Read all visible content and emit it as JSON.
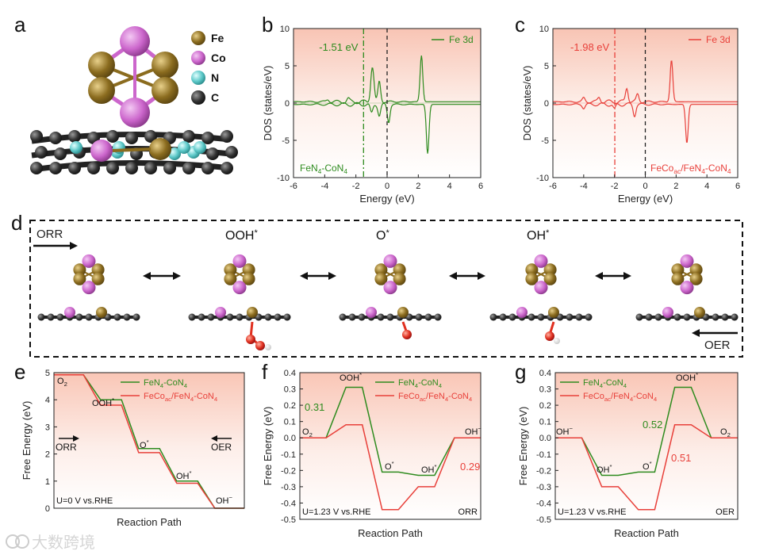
{
  "panel_labels": {
    "a": "a",
    "b": "b",
    "c": "c",
    "d": "d",
    "e": "e",
    "f": "f",
    "g": "g"
  },
  "colors": {
    "green": "#2e8b1e",
    "red": "#e8403a",
    "Fe": "#8b6c1f",
    "Co": "#cc66cc",
    "N": "#5cc8c8",
    "C": "#333333",
    "O": "#e03020",
    "H": "#f0f0f0"
  },
  "legend_a": [
    {
      "symbol": "Fe",
      "color": "#8b6c1f"
    },
    {
      "symbol": "Co",
      "color": "#cc66cc"
    },
    {
      "symbol": "N",
      "color": "#5cc8c8"
    },
    {
      "symbol": "C",
      "color": "#333333"
    }
  ],
  "panel_d": {
    "orr": "ORR",
    "oer": "OER",
    "states": [
      {
        "label": "OOH*"
      },
      {
        "label": "O*"
      },
      {
        "label": "OH*"
      }
    ]
  },
  "chart_data": [
    {
      "id": "b",
      "type": "line",
      "xlabel": "Energy (eV)",
      "ylabel": "DOS (states/eV)",
      "xlim": [
        -6,
        6
      ],
      "ylim": [
        -10,
        10
      ],
      "xticks": [
        "-6",
        "-4",
        "-2",
        "0",
        "2",
        "4",
        "6"
      ],
      "yticks": [
        "-10",
        "-5",
        "0",
        "5",
        "10"
      ],
      "legend": "Fe 3d",
      "annotation": "-1.51 eV",
      "material": "FeN4-CoN4",
      "dband_center": -1.51,
      "peaks_up": [
        [
          -3.8,
          0.3
        ],
        [
          -2.5,
          0.4
        ],
        [
          -1.0,
          2.6
        ],
        [
          -0.9,
          3.0
        ],
        [
          -0.5,
          2.7
        ],
        [
          2.2,
          6.2
        ]
      ],
      "peaks_down": [
        [
          -1.0,
          -1.2
        ],
        [
          -0.5,
          -1.5
        ],
        [
          0.1,
          -2.4
        ],
        [
          2.6,
          -6.6
        ]
      ],
      "legend_position": "top-right"
    },
    {
      "id": "c",
      "type": "line",
      "xlabel": "Energy (eV)",
      "ylabel": "DOS (states/eV)",
      "xlim": [
        -6,
        6
      ],
      "ylim": [
        -10,
        10
      ],
      "xticks": [
        "-6",
        "-4",
        "-2",
        "0",
        "2",
        "4",
        "6"
      ],
      "yticks": [
        "-10",
        "-5",
        "0",
        "5",
        "10"
      ],
      "legend": "Fe 3d",
      "annotation": "-1.98 eV",
      "material": "FeCoac/FeN4-CoN4",
      "dband_center": -1.98,
      "peaks_up": [
        [
          -4.0,
          0.5
        ],
        [
          -3.0,
          0.6
        ],
        [
          -1.2,
          1.9
        ],
        [
          -0.5,
          1.0
        ],
        [
          1.7,
          5.6
        ]
      ],
      "peaks_down": [
        [
          -4.0,
          -0.5
        ],
        [
          -2.0,
          -0.7
        ],
        [
          -0.7,
          -1.5
        ],
        [
          2.7,
          -5.2
        ]
      ],
      "legend_position": "top-right"
    },
    {
      "id": "e",
      "type": "line",
      "xlabel": "Reaction Path",
      "ylabel": "Free Energy (eV)",
      "ylim": [
        0,
        5
      ],
      "yticks": [
        "0",
        "1",
        "2",
        "3",
        "4",
        "5"
      ],
      "condition": "U=0 V vs.RHE",
      "states": [
        "O2",
        "OOH*",
        "O*",
        "OH*",
        "OH-"
      ],
      "orr_label": "ORR",
      "oer_label": "OER",
      "series": [
        {
          "name": "FeN4-CoN4",
          "values": [
            4.92,
            4.0,
            2.2,
            1.0,
            0.0
          ]
        },
        {
          "name": "FeCoac/FeN4-CoN4",
          "values": [
            4.92,
            3.8,
            2.05,
            0.92,
            0.0
          ]
        }
      ]
    },
    {
      "id": "f",
      "type": "line",
      "xlabel": "Reaction Path",
      "ylabel": "Free Energy (eV)",
      "ylim": [
        -0.5,
        0.4
      ],
      "yticks": [
        "-0.5",
        "-0.4",
        "-0.3",
        "-0.2",
        "-0.1",
        "0.0",
        "0.1",
        "0.2",
        "0.3",
        "0.4"
      ],
      "condition": "U=1.23 V vs.RHE",
      "reaction": "ORR",
      "states": [
        "O2",
        "OOH*",
        "O*",
        "OH*",
        "OH-"
      ],
      "series": [
        {
          "name": "FeN4-CoN4",
          "values": [
            0.0,
            0.31,
            -0.21,
            -0.23,
            0.0
          ],
          "barrier": "0.31"
        },
        {
          "name": "FeCoac/FeN4-CoN4",
          "values": [
            0.0,
            0.08,
            -0.44,
            -0.3,
            0.0
          ],
          "barrier": "0.29"
        }
      ]
    },
    {
      "id": "g",
      "type": "line",
      "xlabel": "Reaction Path",
      "ylabel": "Free Energy (eV)",
      "ylim": [
        -0.5,
        0.4
      ],
      "yticks": [
        "-0.5",
        "-0.4",
        "-0.3",
        "-0.2",
        "-0.1",
        "0.0",
        "0.1",
        "0.2",
        "0.3",
        "0.4"
      ],
      "condition": "U=1.23 V vs.RHE",
      "reaction": "OER",
      "states": [
        "OH-",
        "OH*",
        "O*",
        "OOH*",
        "O2"
      ],
      "series": [
        {
          "name": "FeN4-CoN4",
          "values": [
            0.0,
            -0.23,
            -0.21,
            0.31,
            0.0
          ],
          "barrier": "0.52"
        },
        {
          "name": "FeCoac/FeN4-CoN4",
          "values": [
            0.0,
            -0.3,
            -0.44,
            0.08,
            0.0
          ],
          "barrier": "0.51"
        }
      ]
    }
  ],
  "watermark": "大数跨境"
}
